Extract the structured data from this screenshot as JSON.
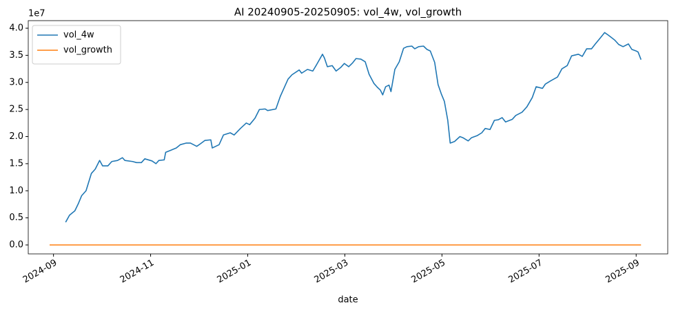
{
  "chart_data": {
    "type": "line",
    "title": "AI 20240905-20250905: vol_4w, vol_growth",
    "x_label": "date",
    "y_offset_label": "1e7",
    "legend": "upper left",
    "xlim": [
      -0.52,
      12.65
    ],
    "ylim": [
      -0.165,
      4.14
    ],
    "xticks": [
      {
        "value": 0,
        "label": "2024-09"
      },
      {
        "value": 2,
        "label": "2024-11"
      },
      {
        "value": 4,
        "label": "2025-01"
      },
      {
        "value": 6,
        "label": "2025-03"
      },
      {
        "value": 8,
        "label": "2025-05"
      },
      {
        "value": 10,
        "label": "2025-07"
      },
      {
        "value": 12,
        "label": "2025-09"
      }
    ],
    "yticks": [
      {
        "value": 0,
        "label": "0.0"
      },
      0.5,
      {
        "value": 1,
        "label": "1.0"
      },
      1.5,
      {
        "value": 2,
        "label": "2.0"
      },
      2.5,
      {
        "value": 3,
        "label": "3.0"
      },
      3.5,
      {
        "value": 4,
        "label": "4.0"
      }
    ],
    "x": [
      -0.08,
      0.25,
      0.33,
      0.44,
      0.51,
      0.58,
      0.67,
      0.78,
      0.86,
      0.95,
      1.01,
      1.12,
      1.2,
      1.32,
      1.42,
      1.47,
      1.63,
      1.71,
      1.81,
      1.88,
      2.03,
      2.11,
      2.17,
      2.28,
      2.31,
      2.42,
      2.53,
      2.61,
      2.73,
      2.82,
      2.95,
      3.03,
      3.12,
      3.24,
      3.27,
      3.41,
      3.5,
      3.64,
      3.72,
      3.85,
      3.97,
      4.04,
      4.15,
      4.24,
      4.36,
      4.41,
      4.58,
      4.67,
      4.83,
      4.91,
      5.06,
      5.11,
      5.23,
      5.34,
      5.42,
      5.54,
      5.58,
      5.64,
      5.74,
      5.82,
      5.92,
      5.99,
      6.08,
      6.16,
      6.23,
      6.33,
      6.42,
      6.5,
      6.6,
      6.67,
      6.73,
      6.78,
      6.84,
      6.91,
      6.95,
      7.03,
      7.12,
      7.21,
      7.28,
      7.38,
      7.44,
      7.52,
      7.62,
      7.69,
      7.76,
      7.85,
      7.92,
      7.99,
      8.05,
      8.12,
      8.17,
      8.26,
      8.37,
      8.43,
      8.54,
      8.61,
      8.73,
      8.82,
      8.89,
      8.99,
      9.08,
      9.16,
      9.24,
      9.31,
      9.45,
      9.52,
      9.65,
      9.75,
      9.86,
      9.94,
      10.07,
      10.13,
      10.24,
      10.38,
      10.47,
      10.58,
      10.67,
      10.81,
      10.89,
      10.98,
      11.08,
      11.15,
      11.26,
      11.35,
      11.43,
      11.56,
      11.64,
      11.73,
      11.84,
      11.91,
      12.0,
      12.04,
      12.1
    ],
    "series": [
      {
        "name": "vol_4w",
        "color": "#1f77b4",
        "values": [
          null,
          0.42,
          0.55,
          0.63,
          0.76,
          0.91,
          1.0,
          1.32,
          1.4,
          1.56,
          1.46,
          1.46,
          1.54,
          1.56,
          1.61,
          1.56,
          1.54,
          1.52,
          1.52,
          1.59,
          1.55,
          1.5,
          1.56,
          1.57,
          1.71,
          1.75,
          1.79,
          1.85,
          1.88,
          1.88,
          1.82,
          1.87,
          1.93,
          1.94,
          1.79,
          1.85,
          2.03,
          2.07,
          2.03,
          2.15,
          2.25,
          2.22,
          2.34,
          2.5,
          2.51,
          2.48,
          2.51,
          2.74,
          3.06,
          3.14,
          3.23,
          3.17,
          3.24,
          3.21,
          3.33,
          3.52,
          3.45,
          3.29,
          3.31,
          3.21,
          3.28,
          3.35,
          3.29,
          3.36,
          3.44,
          3.43,
          3.38,
          3.15,
          2.98,
          2.91,
          2.86,
          2.77,
          2.92,
          2.95,
          2.83,
          3.24,
          3.38,
          3.63,
          3.66,
          3.67,
          3.62,
          3.66,
          3.67,
          3.61,
          3.58,
          3.37,
          2.96,
          2.78,
          2.65,
          2.3,
          1.88,
          1.91,
          2.0,
          1.98,
          1.92,
          1.98,
          2.02,
          2.07,
          2.15,
          2.13,
          2.3,
          2.31,
          2.35,
          2.27,
          2.32,
          2.39,
          2.45,
          2.55,
          2.72,
          2.92,
          2.89,
          2.97,
          3.03,
          3.1,
          3.25,
          3.31,
          3.49,
          3.52,
          3.48,
          3.62,
          3.62,
          3.7,
          3.82,
          3.92,
          3.87,
          3.78,
          3.7,
          3.66,
          3.71,
          3.61,
          3.58,
          3.56,
          3.42
        ]
      },
      {
        "name": "vol_growth",
        "color": "#ff7f0e",
        "values": [
          0,
          0,
          0,
          0,
          0,
          0,
          0,
          0,
          0,
          0,
          0,
          0,
          0,
          0,
          0,
          0,
          0,
          0,
          0,
          0,
          0,
          0,
          0,
          0,
          0,
          0,
          0,
          0,
          0,
          0,
          0,
          0,
          0,
          0,
          0,
          0,
          0,
          0,
          0,
          0,
          0,
          0,
          0,
          0,
          0,
          0,
          0,
          0,
          0,
          0,
          0,
          0,
          0,
          0,
          0,
          0,
          0,
          0,
          0,
          0,
          0,
          0,
          0,
          0,
          0,
          0,
          0,
          0,
          0,
          0,
          0,
          0,
          0,
          0,
          0,
          0,
          0,
          0,
          0,
          0,
          0,
          0,
          0,
          0,
          0,
          0,
          0,
          0,
          0,
          0,
          0,
          0,
          0,
          0,
          0,
          0,
          0,
          0,
          0,
          0,
          0,
          0,
          0,
          0,
          0,
          0,
          0,
          0,
          0,
          0,
          0,
          0,
          0,
          0,
          0,
          0,
          0,
          0,
          0,
          0,
          0,
          0,
          0,
          0,
          0,
          0,
          0,
          0,
          0,
          0,
          0,
          0,
          0
        ]
      }
    ]
  }
}
